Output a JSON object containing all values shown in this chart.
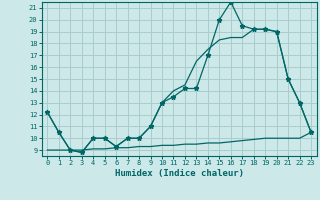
{
  "xlabel": "Humidex (Indice chaleur)",
  "bg_color": "#cce8e8",
  "grid_color": "#aacccc",
  "line_color": "#006666",
  "xlim": [
    -0.5,
    23.5
  ],
  "ylim": [
    8.5,
    21.5
  ],
  "xticks": [
    0,
    1,
    2,
    3,
    4,
    5,
    6,
    7,
    8,
    9,
    10,
    11,
    12,
    13,
    14,
    15,
    16,
    17,
    18,
    19,
    20,
    21,
    22,
    23
  ],
  "yticks": [
    9,
    10,
    11,
    12,
    13,
    14,
    15,
    16,
    17,
    18,
    19,
    20,
    21
  ],
  "line1_x": [
    0,
    1,
    2,
    3,
    4,
    5,
    6,
    7,
    8,
    9,
    10,
    11,
    12,
    13,
    14,
    15,
    16,
    17,
    18,
    19,
    20,
    21,
    22,
    23
  ],
  "line1_y": [
    12.2,
    10.5,
    9.0,
    8.8,
    10.0,
    10.0,
    9.3,
    10.0,
    10.0,
    11.0,
    13.0,
    13.5,
    14.2,
    14.2,
    17.0,
    20.0,
    21.5,
    19.5,
    19.2,
    19.2,
    19.0,
    15.0,
    13.0,
    10.5
  ],
  "line2_x": [
    0,
    1,
    2,
    3,
    4,
    5,
    6,
    7,
    8,
    9,
    10,
    11,
    12,
    13,
    14,
    15,
    16,
    17,
    18,
    19,
    20,
    21,
    22,
    23
  ],
  "line2_y": [
    12.2,
    10.5,
    9.0,
    8.8,
    10.0,
    10.0,
    9.3,
    10.0,
    10.0,
    11.0,
    13.0,
    14.0,
    14.5,
    16.5,
    17.5,
    18.3,
    18.5,
    18.5,
    19.2,
    19.2,
    19.0,
    15.0,
    13.0,
    10.5
  ],
  "line3_x": [
    0,
    1,
    2,
    3,
    4,
    5,
    6,
    7,
    8,
    9,
    10,
    11,
    12,
    13,
    14,
    15,
    16,
    17,
    18,
    19,
    20,
    21,
    22,
    23
  ],
  "line3_y": [
    9.0,
    9.0,
    9.0,
    9.0,
    9.1,
    9.1,
    9.2,
    9.2,
    9.3,
    9.3,
    9.4,
    9.4,
    9.5,
    9.5,
    9.6,
    9.6,
    9.7,
    9.8,
    9.9,
    10.0,
    10.0,
    10.0,
    10.0,
    10.5
  ]
}
